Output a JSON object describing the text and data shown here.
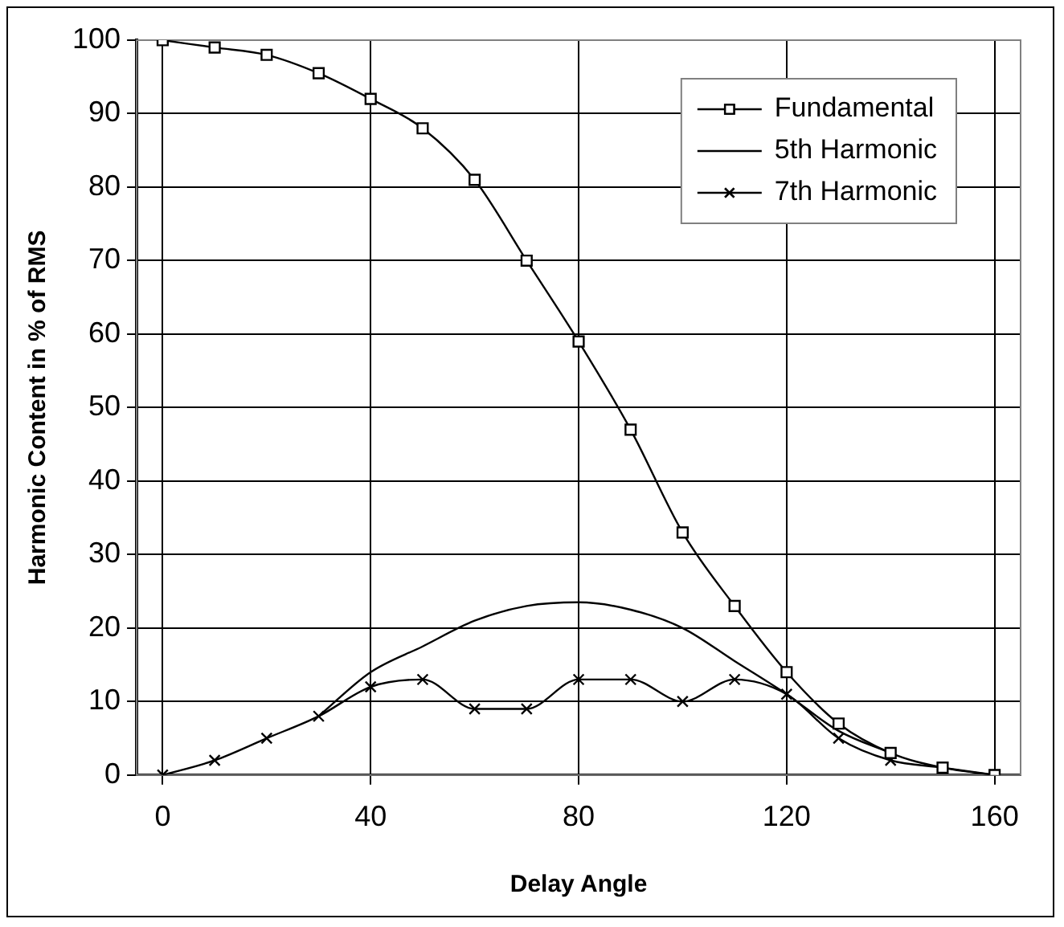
{
  "chart_data": {
    "type": "line",
    "xlabel": "Delay Angle",
    "ylabel": "Harmonic Content in % of RMS",
    "x": [
      0,
      10,
      20,
      30,
      40,
      50,
      60,
      70,
      80,
      90,
      100,
      110,
      120,
      130,
      140,
      150,
      160
    ],
    "series": [
      {
        "name": "Fundamental",
        "color": "#000000",
        "marker": "square",
        "values": [
          100,
          99,
          98,
          95.5,
          92,
          88,
          81,
          70,
          59,
          47,
          33,
          23,
          14,
          7,
          3,
          1,
          0
        ]
      },
      {
        "name": "5th Harmonic",
        "color": "#000000",
        "marker": "none",
        "values": [
          null,
          null,
          null,
          8,
          14,
          17.5,
          21,
          23,
          23.5,
          22.5,
          20,
          15.5,
          11,
          6,
          3,
          null,
          null
        ]
      },
      {
        "name": "7th Harmonic",
        "color": "#000000",
        "marker": "cross",
        "values": [
          0,
          2,
          5,
          8,
          12,
          13,
          9,
          9,
          13,
          13,
          10,
          13,
          11,
          5,
          2,
          1,
          0
        ]
      }
    ],
    "xlim": [
      -5,
      165
    ],
    "xticks": [
      0,
      40,
      80,
      120,
      160
    ],
    "ylim": [
      0,
      100
    ],
    "yticks": [
      0,
      10,
      20,
      30,
      40,
      50,
      60,
      70,
      80,
      90,
      100
    ],
    "grid": true,
    "legend": "top right",
    "line_style": "solid"
  }
}
